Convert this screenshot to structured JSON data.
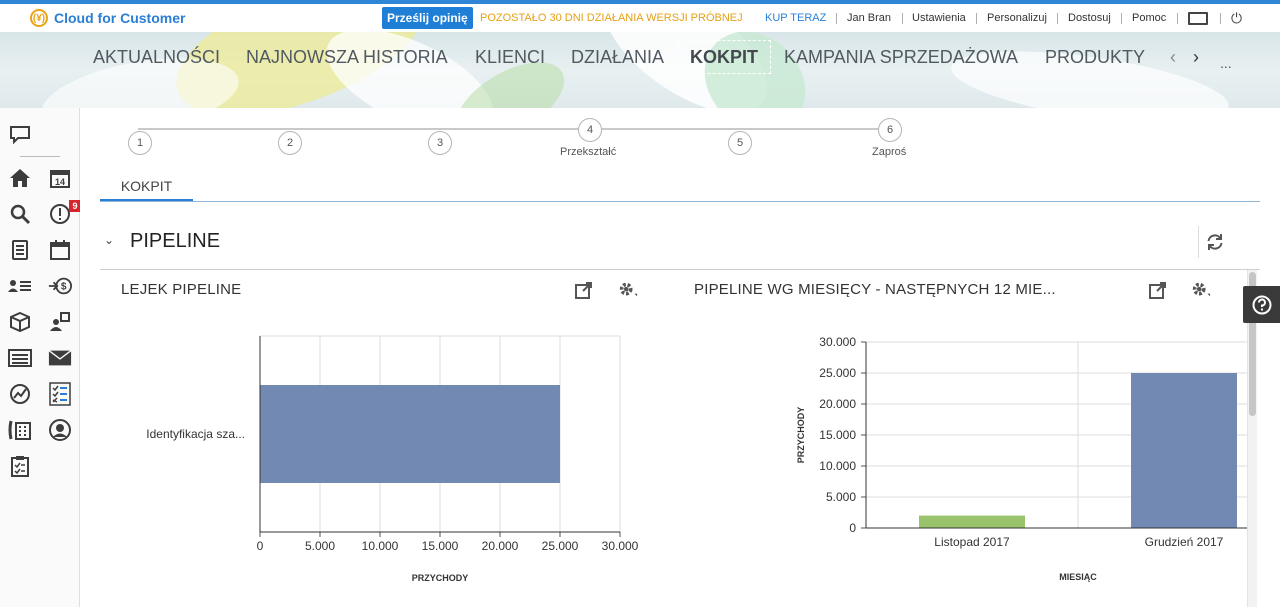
{
  "header": {
    "brand": "Cloud for Customer",
    "feedback_label": "Prześlij opinię",
    "trial_notice": "POZOSTAŁO 30 DNI DZIAŁANIA WERSJI PRÓBNEJ",
    "buy_label": "KUP TERAZ",
    "links": [
      "Jan Bran",
      "Ustawienia",
      "Personalizuj",
      "Dostosuj",
      "Pomoc"
    ],
    "accent_color": "#2f86d6",
    "trial_color": "#e6a117"
  },
  "nav": {
    "tabs": [
      "AKTUALNOŚCI",
      "NAJNOWSZA HISTORIA",
      "KLIENCI",
      "DZIAŁANIA",
      "KOKPIT",
      "KAMPANIA SPRZEDAŻOWA",
      "PRODUKTY"
    ],
    "active": "KOKPIT",
    "more": "..."
  },
  "sidebar": {
    "icons": [
      "chat-icon",
      "home-icon",
      "calendar-14-icon",
      "search-icon",
      "alert-icon",
      "worklist-icon",
      "calendar-icon",
      "contacts-icon",
      "sales-icon",
      "product-icon",
      "assign-icon",
      "list-icon",
      "mail-icon",
      "analytics-icon",
      "checklist-icon",
      "phone-calculator-icon",
      "person-icon",
      "clipboard-icon"
    ],
    "alert_badge": "9"
  },
  "stepper": {
    "steps": [
      {
        "number": "1",
        "label": ""
      },
      {
        "number": "2",
        "label": ""
      },
      {
        "number": "3",
        "label": ""
      },
      {
        "number": "4",
        "label": "Przekształć"
      },
      {
        "number": "5",
        "label": ""
      },
      {
        "number": "6",
        "label": "Zaproś"
      }
    ]
  },
  "page_tab": "KOKPIT",
  "section": {
    "title": "PIPELINE"
  },
  "cards": [
    {
      "title": "LEJEK PIPELINE"
    },
    {
      "title": "PIPELINE WG MIESIĘCY - NASTĘPNYCH 12 MIE..."
    }
  ],
  "chart_data": [
    {
      "type": "bar",
      "orientation": "horizontal",
      "categories": [
        "Identyfikacja sza..."
      ],
      "values": [
        25000
      ],
      "xlabel": "PRZYCHODY",
      "ylabel": "",
      "xlim": [
        0,
        30000
      ],
      "ticks": [
        "0",
        "5.000",
        "10.000",
        "15.000",
        "20.000",
        "25.000",
        "30.000"
      ],
      "grid": true,
      "colors": [
        "#7189b3"
      ]
    },
    {
      "type": "bar",
      "orientation": "vertical",
      "categories": [
        "Listopad 2017",
        "Grudzień 2017"
      ],
      "values": [
        2000,
        25000
      ],
      "xlabel": "MIESIĄC",
      "ylabel": "PRZYCHODY",
      "ylim": [
        0,
        30000
      ],
      "ticks": [
        "0",
        "5.000",
        "10.000",
        "15.000",
        "20.000",
        "25.000",
        "30.000"
      ],
      "grid": true,
      "colors": [
        "#9ac46b",
        "#7189b3"
      ]
    }
  ]
}
